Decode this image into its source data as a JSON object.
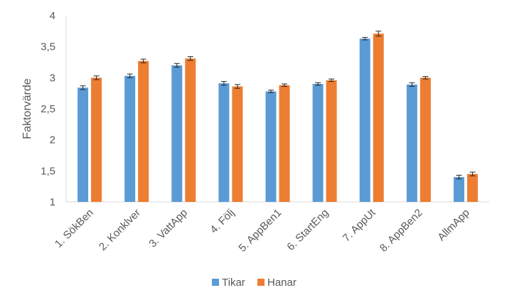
{
  "chart_data": {
    "type": "bar",
    "title": "",
    "xlabel": "",
    "ylabel": "Faktorvärde",
    "ylim": [
      1,
      4
    ],
    "yticks": [
      1,
      1.5,
      2,
      2.5,
      3,
      3.5,
      4
    ],
    "ytick_labels": [
      "1",
      "1,5",
      "2",
      "2,5",
      "3",
      "3,5",
      "4"
    ],
    "grid": false,
    "error_bars": true,
    "legend_position": "bottom",
    "categories": [
      "1. SökBen",
      "2. Konklver",
      "3. VattApp",
      "4. Följ",
      "5. AppBen1",
      "6. StartEng",
      "7. AppUt",
      "8. AppBen2",
      "AllmApp"
    ],
    "series": [
      {
        "name": "Tikar",
        "color": "#5B9BD5",
        "values": [
          2.84,
          3.03,
          3.2,
          2.91,
          2.78,
          2.9,
          3.63,
          2.89,
          1.4
        ],
        "errors": [
          0.03,
          0.03,
          0.03,
          0.03,
          0.02,
          0.02,
          0.02,
          0.03,
          0.03
        ]
      },
      {
        "name": "Hanar",
        "color": "#ED7D31",
        "values": [
          3.0,
          3.27,
          3.31,
          2.86,
          2.88,
          2.96,
          3.71,
          3.0,
          1.45
        ],
        "errors": [
          0.03,
          0.03,
          0.03,
          0.03,
          0.02,
          0.02,
          0.04,
          0.02,
          0.03
        ]
      }
    ]
  }
}
